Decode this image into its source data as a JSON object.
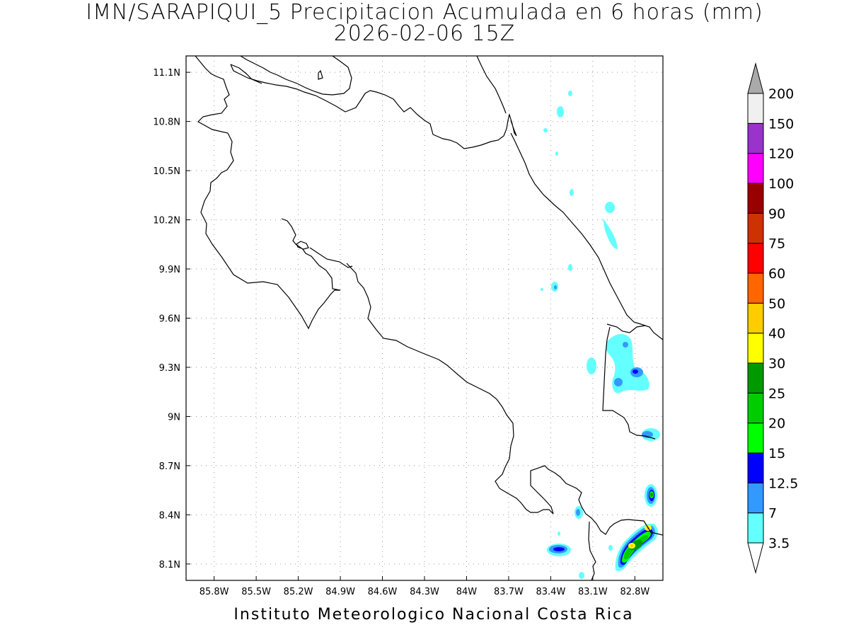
{
  "header": {
    "title": "IMN/SARAPIQUI_5 Precipitacion Acumulada en 6 horas (mm)",
    "datetime": "2026-02-06 15Z"
  },
  "footer": {
    "credit": "Instituto Meteorologico Nacional Costa Rica"
  },
  "map": {
    "lon_range": [
      -86.0,
      -82.6
    ],
    "lat_range": [
      8.0,
      11.2
    ],
    "grid": true,
    "x_ticks": [
      "85.8W",
      "85.5W",
      "85.2W",
      "84.9W",
      "84.6W",
      "84.3W",
      "84W",
      "83.7W",
      "83.4W",
      "83.1W",
      "82.8W"
    ],
    "y_ticks": [
      "11.1N",
      "10.8N",
      "10.5N",
      "10.2N",
      "9.9N",
      "9.6N",
      "9.3N",
      "9N",
      "8.7N",
      "8.4N",
      "8.1N"
    ]
  },
  "colorbar": {
    "levels": [
      "3.5",
      "7",
      "12.5",
      "15",
      "20",
      "25",
      "30",
      "40",
      "50",
      "60",
      "75",
      "90",
      "100",
      "120",
      "150",
      "200"
    ],
    "colors": [
      "#64ffff",
      "#3399ff",
      "#0000ff",
      "#00ff00",
      "#00cc00",
      "#009900",
      "#ffff00",
      "#ffcc00",
      "#ff6600",
      "#ff0000",
      "#cc3300",
      "#990000",
      "#ff00ff",
      "#9933cc",
      "#f0f0f0",
      "#aaaaaa"
    ],
    "below_color": "#ffffff"
  }
}
